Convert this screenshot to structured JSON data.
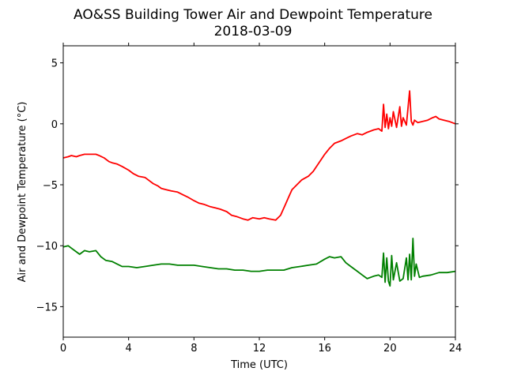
{
  "chart_data": {
    "type": "line",
    "title": "AO&SS Building Tower Air and Dewpoint Temperature",
    "subtitle": "2018-03-09",
    "xlabel": "Time (UTC)",
    "ylabel": "Air and Dewpoint Temperature (°C)",
    "xlim": [
      0,
      24
    ],
    "ylim": [
      -17.5,
      6.4
    ],
    "xticks": [
      0,
      4,
      8,
      12,
      16,
      20,
      24
    ],
    "yticks": [
      5,
      0,
      -5,
      -10,
      -15
    ],
    "ytick_labels": [
      "5",
      "0",
      "−5",
      "−10",
      "−15"
    ],
    "grid": false,
    "legend": "none",
    "series": [
      {
        "color": "#ff0000",
        "x": [
          0,
          0.3,
          0.5,
          0.8,
          1.0,
          1.3,
          1.6,
          2.0,
          2.2,
          2.5,
          2.8,
          3.0,
          3.3,
          3.6,
          4.0,
          4.3,
          4.6,
          5.0,
          5.2,
          5.5,
          5.8,
          6.0,
          6.3,
          6.6,
          7.0,
          7.3,
          7.6,
          8.0,
          8.3,
          8.6,
          9.0,
          9.3,
          9.6,
          10.0,
          10.3,
          10.6,
          11.0,
          11.3,
          11.6,
          12.0,
          12.3,
          12.6,
          13.0,
          13.3,
          13.6,
          13.8,
          14.0,
          14.3,
          14.6,
          15.0,
          15.3,
          15.6,
          16.0,
          16.3,
          16.6,
          17.0,
          17.3,
          17.6,
          18.0,
          18.3,
          18.6,
          19.0,
          19.3,
          19.5,
          19.6,
          19.7,
          19.8,
          19.9,
          20.0,
          20.1,
          20.2,
          20.4,
          20.6,
          20.7,
          20.8,
          21.0,
          21.2,
          21.3,
          21.4,
          21.5,
          21.7,
          22.0,
          22.3,
          22.6,
          22.8,
          23.0,
          23.3,
          23.6,
          24.0
        ],
        "y": [
          -2.8,
          -2.7,
          -2.6,
          -2.7,
          -2.6,
          -2.5,
          -2.5,
          -2.5,
          -2.6,
          -2.8,
          -3.1,
          -3.2,
          -3.3,
          -3.5,
          -3.8,
          -4.1,
          -4.3,
          -4.4,
          -4.6,
          -4.9,
          -5.1,
          -5.3,
          -5.4,
          -5.5,
          -5.6,
          -5.8,
          -6.0,
          -6.3,
          -6.5,
          -6.6,
          -6.8,
          -6.9,
          -7.0,
          -7.2,
          -7.5,
          -7.6,
          -7.8,
          -7.9,
          -7.7,
          -7.8,
          -7.7,
          -7.8,
          -7.9,
          -7.5,
          -6.6,
          -6.0,
          -5.4,
          -5.0,
          -4.6,
          -4.3,
          -3.9,
          -3.3,
          -2.5,
          -2.0,
          -1.6,
          -1.4,
          -1.2,
          -1.0,
          -0.8,
          -0.9,
          -0.7,
          -0.5,
          -0.4,
          -0.6,
          1.6,
          -0.3,
          0.8,
          -0.4,
          0.5,
          -0.2,
          1.0,
          -0.3,
          1.4,
          -0.2,
          0.5,
          -0.1,
          2.7,
          0.2,
          -0.1,
          0.3,
          0.1,
          0.2,
          0.3,
          0.5,
          0.6,
          0.4,
          0.3,
          0.2,
          0.0
        ]
      },
      {
        "color": "#008000",
        "x": [
          0,
          0.3,
          0.5,
          0.8,
          1.0,
          1.3,
          1.6,
          2.0,
          2.3,
          2.6,
          3.0,
          3.3,
          3.6,
          4.0,
          4.5,
          5.0,
          5.5,
          6.0,
          6.5,
          7.0,
          7.5,
          8.0,
          8.5,
          9.0,
          9.5,
          10.0,
          10.5,
          11.0,
          11.5,
          12.0,
          12.5,
          13.0,
          13.5,
          14.0,
          14.5,
          15.0,
          15.5,
          16.0,
          16.3,
          16.6,
          17.0,
          17.3,
          17.6,
          18.0,
          18.3,
          18.6,
          19.0,
          19.3,
          19.5,
          19.6,
          19.7,
          19.8,
          19.9,
          20.0,
          20.1,
          20.2,
          20.4,
          20.6,
          20.8,
          21.0,
          21.1,
          21.2,
          21.3,
          21.4,
          21.5,
          21.6,
          21.8,
          22.0,
          22.5,
          23.0,
          23.5,
          24.0
        ],
        "y": [
          -10.1,
          -10.0,
          -10.2,
          -10.5,
          -10.7,
          -10.4,
          -10.5,
          -10.4,
          -10.9,
          -11.2,
          -11.3,
          -11.5,
          -11.7,
          -11.7,
          -11.8,
          -11.7,
          -11.6,
          -11.5,
          -11.5,
          -11.6,
          -11.6,
          -11.6,
          -11.7,
          -11.8,
          -11.9,
          -11.9,
          -12.0,
          -12.0,
          -12.1,
          -12.1,
          -12.0,
          -12.0,
          -12.0,
          -11.8,
          -11.7,
          -11.6,
          -11.5,
          -11.1,
          -10.9,
          -11.0,
          -10.9,
          -11.4,
          -11.7,
          -12.1,
          -12.4,
          -12.7,
          -12.5,
          -12.4,
          -12.6,
          -10.6,
          -13.0,
          -11.0,
          -12.9,
          -13.3,
          -10.8,
          -12.8,
          -11.4,
          -12.9,
          -12.7,
          -11.0,
          -12.8,
          -10.7,
          -12.8,
          -9.4,
          -12.5,
          -11.5,
          -12.6,
          -12.5,
          -12.4,
          -12.2,
          -12.2,
          -12.1
        ]
      }
    ]
  }
}
